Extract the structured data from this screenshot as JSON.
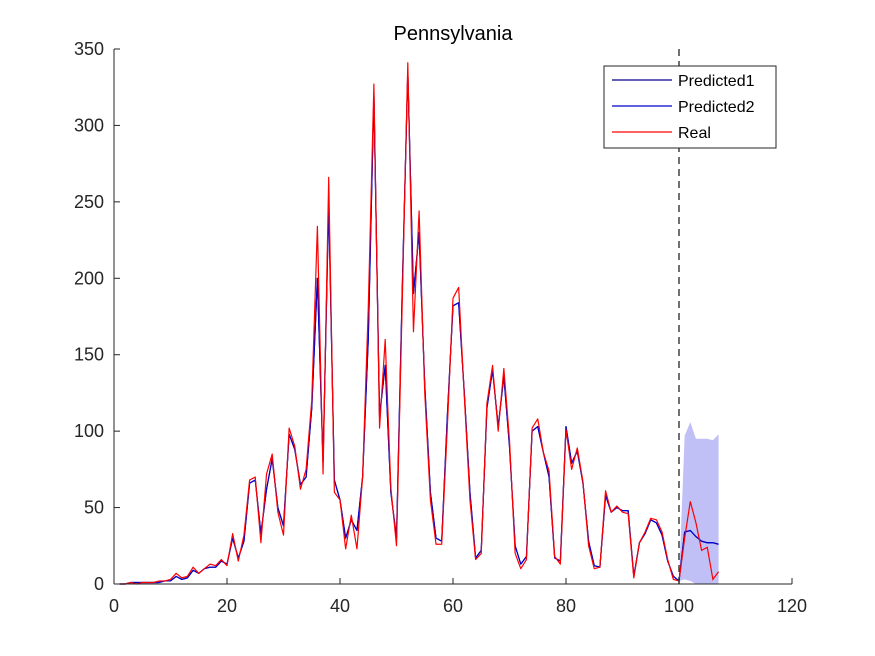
{
  "chart_data": {
    "type": "line",
    "title": "Pennsylvania",
    "xlabel": "",
    "ylabel": "",
    "xlim": [
      0,
      120
    ],
    "ylim": [
      0,
      350
    ],
    "xticks": [
      0,
      20,
      40,
      60,
      80,
      100,
      120
    ],
    "yticks": [
      0,
      50,
      100,
      150,
      200,
      250,
      300,
      350
    ],
    "grid": false,
    "legend_position": "top-right",
    "vline_x": 100,
    "x": [
      1,
      2,
      3,
      4,
      5,
      6,
      7,
      8,
      9,
      10,
      11,
      12,
      13,
      14,
      15,
      16,
      17,
      18,
      19,
      20,
      21,
      22,
      23,
      24,
      25,
      26,
      27,
      28,
      29,
      30,
      31,
      32,
      33,
      34,
      35,
      36,
      37,
      38,
      39,
      40,
      41,
      42,
      43,
      44,
      45,
      46,
      47,
      48,
      49,
      50,
      51,
      52,
      53,
      54,
      55,
      56,
      57,
      58,
      59,
      60,
      61,
      62,
      63,
      64,
      65,
      66,
      67,
      68,
      69,
      70,
      71,
      72,
      73,
      74,
      75,
      76,
      77,
      78,
      79,
      80,
      81,
      82,
      83,
      84,
      85,
      86,
      87,
      88,
      89,
      90,
      91,
      92,
      93,
      94,
      95,
      96,
      97,
      98,
      99,
      100
    ],
    "series": [
      {
        "name": "Predicted1",
        "color": "#00008b",
        "values": [
          0,
          0,
          1,
          1,
          1,
          1,
          1,
          1,
          2,
          2,
          5,
          3,
          4,
          9,
          7,
          10,
          11,
          11,
          15,
          13,
          30,
          17,
          28,
          66,
          68,
          33,
          62,
          82,
          50,
          38,
          98,
          88,
          65,
          70,
          115,
          200,
          80,
          250,
          68,
          55,
          30,
          42,
          35,
          70,
          160,
          320,
          110,
          143,
          60,
          30,
          190,
          335,
          190,
          230,
          130,
          60,
          30,
          28,
          110,
          182,
          184,
          125,
          60,
          17,
          22,
          115,
          140,
          103,
          136,
          90,
          25,
          13,
          18,
          100,
          103,
          86,
          70,
          17,
          15,
          103,
          79,
          87,
          66,
          28,
          12,
          11,
          58,
          47,
          50,
          48,
          48,
          5,
          27,
          33,
          42,
          40,
          32,
          15,
          5,
          2
        ]
      },
      {
        "name": "Predicted2",
        "color": "#0000cd",
        "values": [
          0,
          0,
          1,
          1,
          1,
          1,
          1,
          1,
          2,
          2,
          5,
          3,
          4,
          9,
          7,
          10,
          11,
          11,
          15,
          13,
          30,
          17,
          28,
          66,
          68,
          33,
          62,
          82,
          50,
          38,
          98,
          88,
          65,
          70,
          115,
          200,
          80,
          250,
          68,
          55,
          30,
          42,
          35,
          70,
          160,
          320,
          110,
          143,
          60,
          30,
          190,
          335,
          190,
          230,
          130,
          60,
          30,
          28,
          110,
          182,
          184,
          125,
          60,
          17,
          22,
          115,
          140,
          103,
          136,
          90,
          25,
          13,
          18,
          100,
          103,
          86,
          70,
          17,
          15,
          103,
          79,
          87,
          66,
          28,
          12,
          11,
          58,
          47,
          50,
          48,
          48,
          5,
          27,
          33,
          42,
          40,
          32,
          15,
          5,
          2
        ]
      },
      {
        "name": "Real",
        "color": "#ff0000",
        "values": [
          0,
          0,
          1,
          0,
          1,
          1,
          1,
          2,
          2,
          3,
          7,
          4,
          5,
          11,
          7,
          10,
          13,
          12,
          16,
          12,
          33,
          15,
          32,
          68,
          70,
          27,
          72,
          85,
          47,
          32,
          102,
          90,
          62,
          75,
          120,
          234,
          72,
          266,
          60,
          55,
          23,
          45,
          23,
          70,
          180,
          327,
          102,
          160,
          63,
          25,
          182,
          341,
          165,
          244,
          125,
          55,
          26,
          26,
          103,
          187,
          194,
          123,
          55,
          16,
          20,
          118,
          143,
          100,
          141,
          94,
          20,
          10,
          16,
          102,
          108,
          86,
          74,
          18,
          13,
          101,
          75,
          89,
          67,
          25,
          10,
          11,
          61,
          47,
          51,
          47,
          46,
          4,
          27,
          34,
          43,
          42,
          34,
          16,
          3,
          2
        ]
      }
    ],
    "forecast": {
      "x": [
        100,
        101,
        102,
        103,
        104,
        105,
        106,
        107
      ],
      "predicted1": [
        2,
        34,
        35,
        31,
        28,
        27,
        27,
        26
      ],
      "predicted2": [
        2,
        34,
        35,
        31,
        28,
        27,
        27,
        26
      ],
      "real": [
        2,
        30,
        54,
        40,
        22,
        24,
        3,
        8
      ],
      "band_upper": [
        2,
        97,
        106,
        95,
        95,
        95,
        94,
        98
      ],
      "band_lower": [
        2,
        3,
        2,
        0,
        0,
        0,
        0,
        0
      ],
      "band_color": "#8c8cf0"
    }
  }
}
